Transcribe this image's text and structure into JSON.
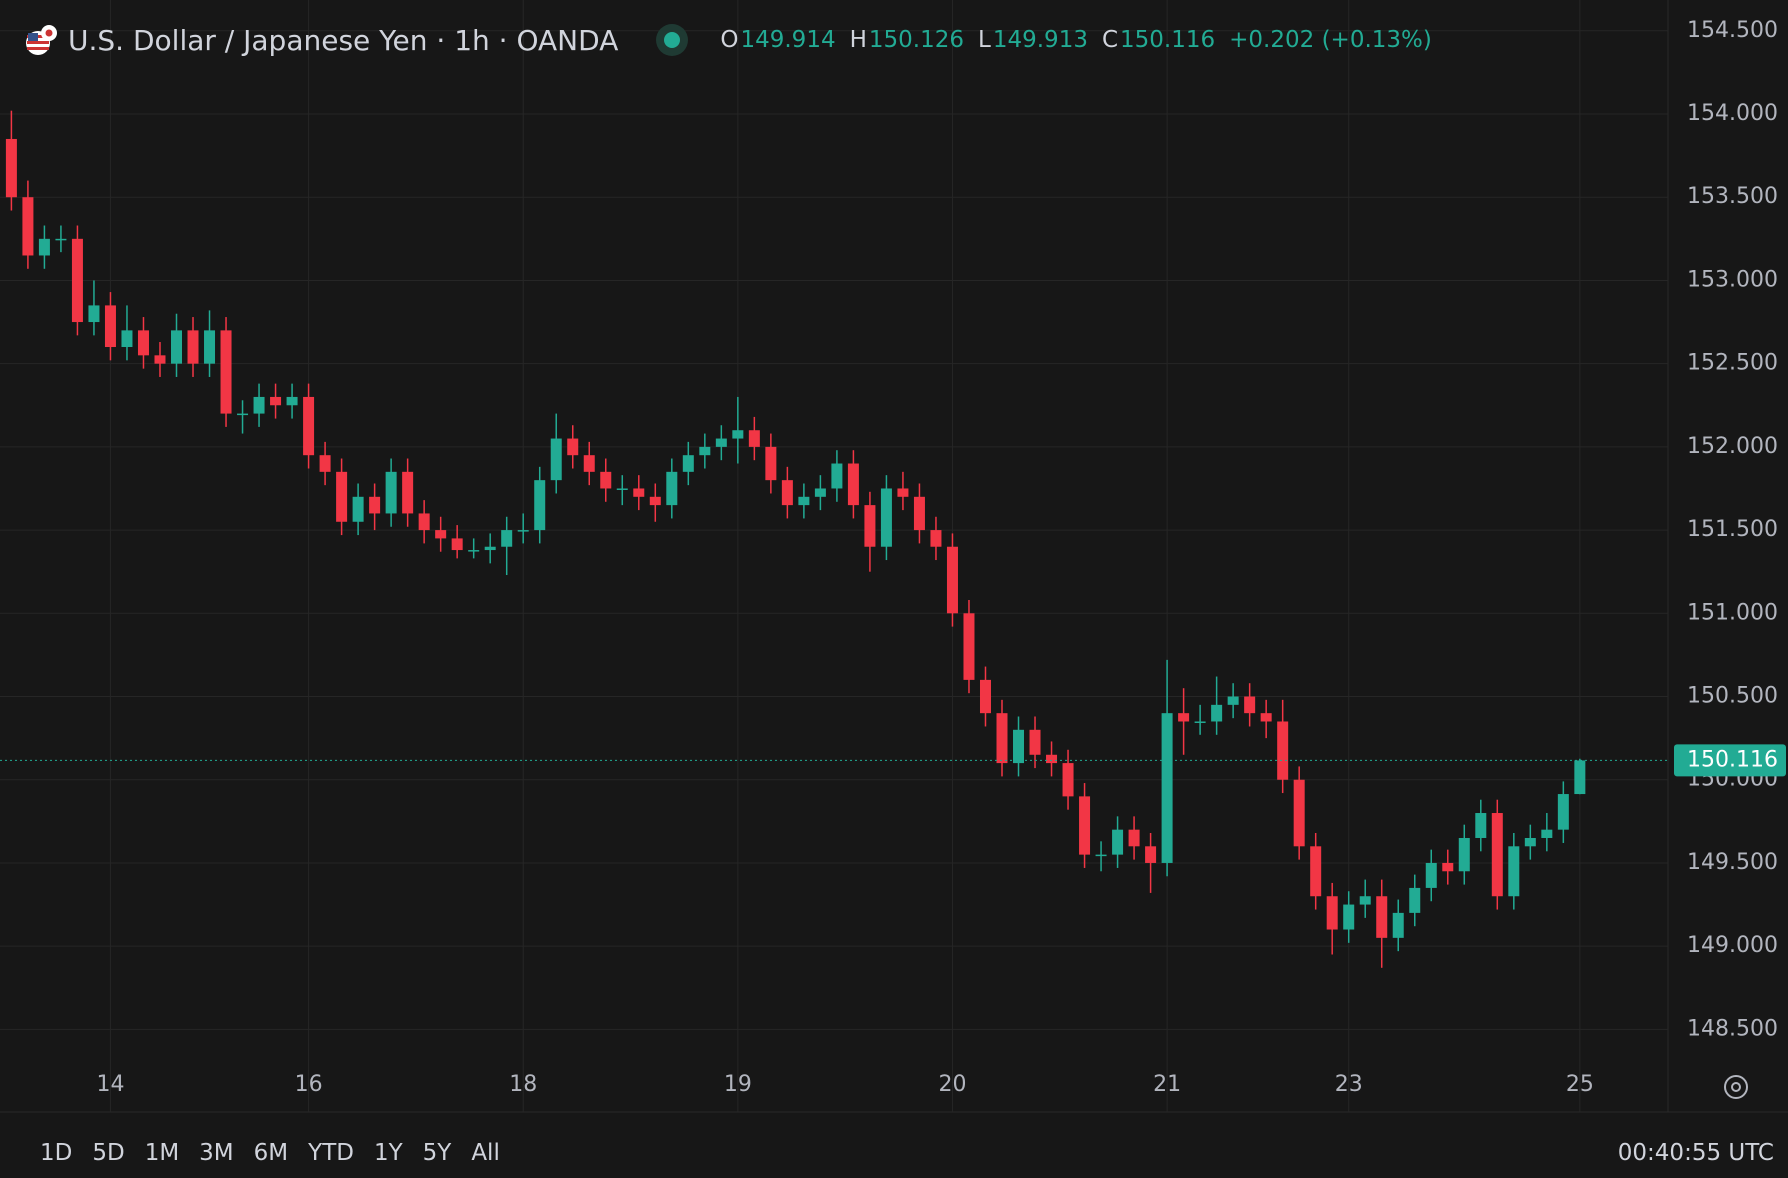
{
  "chart_data": {
    "type": "candlestick",
    "symbol": "U.S. Dollar / Japanese Yen · 1h · OANDA",
    "ohlc_labels": [
      "O",
      "H",
      "L",
      "C"
    ],
    "change": "+0.202 (+0.13%)",
    "up_color": "#22ab94",
    "down_color": "#f23645",
    "grid": true,
    "categories": [
      null,
      null,
      null,
      null,
      null,
      null,
      "14",
      null,
      null,
      null,
      null,
      null,
      null,
      null,
      null,
      null,
      null,
      null,
      "16",
      null,
      null,
      null,
      null,
      null,
      null,
      null,
      null,
      null,
      null,
      null,
      null,
      "18",
      null,
      null,
      null,
      null,
      null,
      null,
      null,
      null,
      null,
      null,
      null,
      null,
      "19",
      null,
      null,
      null,
      null,
      null,
      null,
      null,
      null,
      null,
      null,
      null,
      null,
      "20",
      null,
      null,
      null,
      null,
      null,
      null,
      null,
      null,
      null,
      null,
      null,
      null,
      "21",
      null,
      null,
      null,
      null,
      null,
      null,
      null,
      null,
      null,
      null,
      "23",
      null,
      null,
      null,
      null,
      null,
      null,
      null,
      null,
      null,
      null,
      null,
      null,
      null,
      "25"
    ],
    "open": [
      153.85,
      153.5,
      153.15,
      153.25,
      153.25,
      152.75,
      152.85,
      152.6,
      152.7,
      152.55,
      152.5,
      152.7,
      152.5,
      152.7,
      152.2,
      152.2,
      152.3,
      152.25,
      152.3,
      151.95,
      151.85,
      151.55,
      151.7,
      151.6,
      151.85,
      151.6,
      151.5,
      151.45,
      151.38,
      151.38,
      151.4,
      151.5,
      151.5,
      151.8,
      152.05,
      151.95,
      151.85,
      151.75,
      151.75,
      151.7,
      151.65,
      151.85,
      151.95,
      152.0,
      152.05,
      152.1,
      152.0,
      151.8,
      151.65,
      151.7,
      151.75,
      151.9,
      151.65,
      151.4,
      151.75,
      151.7,
      151.5,
      151.4,
      151.0,
      150.6,
      150.4,
      150.1,
      150.3,
      150.15,
      150.1,
      149.9,
      149.55,
      149.55,
      149.7,
      149.6,
      149.5,
      150.4,
      150.35,
      150.35,
      150.45,
      150.5,
      150.4,
      150.35,
      150.0,
      149.6,
      149.3,
      149.1,
      149.25,
      149.3,
      149.05,
      149.2,
      149.35,
      149.5,
      149.45,
      149.65,
      149.8,
      149.3,
      149.6,
      149.65,
      149.7,
      149.914
    ],
    "high": [
      154.02,
      153.6,
      153.33,
      153.33,
      153.33,
      153.0,
      152.93,
      152.85,
      152.78,
      152.63,
      152.8,
      152.78,
      152.82,
      152.78,
      152.28,
      152.38,
      152.38,
      152.38,
      152.38,
      152.03,
      151.93,
      151.78,
      151.78,
      151.93,
      151.93,
      151.68,
      151.58,
      151.53,
      151.45,
      151.48,
      151.58,
      151.6,
      151.88,
      152.2,
      152.13,
      152.03,
      151.93,
      151.83,
      151.83,
      151.78,
      151.93,
      152.03,
      152.08,
      152.13,
      152.3,
      152.18,
      152.08,
      151.88,
      151.78,
      151.83,
      151.98,
      151.98,
      151.73,
      151.83,
      151.85,
      151.78,
      151.58,
      151.48,
      151.08,
      150.68,
      150.48,
      150.38,
      150.38,
      150.23,
      150.18,
      149.98,
      149.63,
      149.78,
      149.78,
      149.68,
      150.72,
      150.55,
      150.45,
      150.62,
      150.58,
      150.58,
      150.48,
      150.48,
      150.08,
      149.68,
      149.38,
      149.33,
      149.4,
      149.4,
      149.28,
      149.43,
      149.58,
      149.58,
      149.73,
      149.88,
      149.88,
      149.68,
      149.73,
      149.8,
      149.99,
      150.126
    ],
    "low": [
      153.42,
      153.07,
      153.07,
      153.17,
      152.67,
      152.67,
      152.52,
      152.52,
      152.47,
      152.42,
      152.42,
      152.42,
      152.42,
      152.12,
      152.08,
      152.12,
      152.17,
      152.17,
      151.87,
      151.77,
      151.47,
      151.47,
      151.5,
      151.52,
      151.52,
      151.42,
      151.37,
      151.33,
      151.33,
      151.3,
      151.23,
      151.42,
      151.42,
      151.72,
      151.87,
      151.77,
      151.67,
      151.65,
      151.62,
      151.55,
      151.57,
      151.77,
      151.87,
      151.92,
      151.9,
      151.92,
      151.72,
      151.57,
      151.57,
      151.62,
      151.67,
      151.57,
      151.25,
      151.32,
      151.62,
      151.42,
      151.32,
      150.92,
      150.52,
      150.32,
      150.02,
      150.02,
      150.07,
      150.02,
      149.82,
      149.47,
      149.45,
      149.47,
      149.52,
      149.32,
      149.42,
      150.15,
      150.27,
      150.27,
      150.37,
      150.32,
      150.25,
      149.92,
      149.52,
      149.22,
      148.95,
      149.02,
      149.17,
      148.87,
      148.97,
      149.12,
      149.27,
      149.37,
      149.37,
      149.57,
      149.22,
      149.22,
      149.52,
      149.57,
      149.62,
      149.913
    ],
    "close": [
      153.5,
      153.15,
      153.25,
      153.25,
      152.75,
      152.85,
      152.6,
      152.7,
      152.55,
      152.5,
      152.7,
      152.5,
      152.7,
      152.2,
      152.2,
      152.3,
      152.25,
      152.3,
      151.95,
      151.85,
      151.55,
      151.7,
      151.6,
      151.85,
      151.6,
      151.5,
      151.45,
      151.38,
      151.38,
      151.4,
      151.5,
      151.5,
      151.8,
      152.05,
      151.95,
      151.85,
      151.75,
      151.75,
      151.7,
      151.65,
      151.85,
      151.95,
      152.0,
      152.05,
      152.1,
      152.0,
      151.8,
      151.65,
      151.7,
      151.75,
      151.9,
      151.65,
      151.4,
      151.75,
      151.7,
      151.5,
      151.4,
      151.0,
      150.6,
      150.4,
      150.1,
      150.3,
      150.15,
      150.1,
      149.9,
      149.55,
      149.55,
      149.7,
      149.6,
      149.5,
      150.4,
      150.35,
      150.35,
      150.45,
      150.5,
      150.4,
      150.35,
      150.0,
      149.6,
      149.3,
      149.1,
      149.25,
      149.3,
      149.05,
      149.2,
      149.35,
      149.5,
      149.45,
      149.65,
      149.8,
      149.3,
      149.6,
      149.65,
      149.7,
      149.914,
      150.116
    ],
    "ylim": [
      148.28,
      154.685
    ],
    "yticks": [
      {
        "value": 148.5,
        "label": "148.500"
      },
      {
        "value": 149,
        "label": "149.000"
      },
      {
        "value": 149.5,
        "label": "149.500"
      },
      {
        "value": 150,
        "label": "150.000"
      },
      {
        "value": 150.5,
        "label": "150.500"
      },
      {
        "value": 151,
        "label": "151.000"
      },
      {
        "value": 151.5,
        "label": "151.500"
      },
      {
        "value": 152,
        "label": "152.000"
      },
      {
        "value": 152.5,
        "label": "152.500"
      },
      {
        "value": 153,
        "label": "153.000"
      },
      {
        "value": 153.5,
        "label": "153.500"
      },
      {
        "value": 154,
        "label": "154.000"
      },
      {
        "value": 154.5,
        "label": "154.500"
      }
    ],
    "ranges": [
      "1D",
      "5D",
      "1M",
      "3M",
      "6M",
      "YTD",
      "1Y",
      "5Y",
      "All"
    ],
    "clock": "00:40:55 UTC"
  }
}
